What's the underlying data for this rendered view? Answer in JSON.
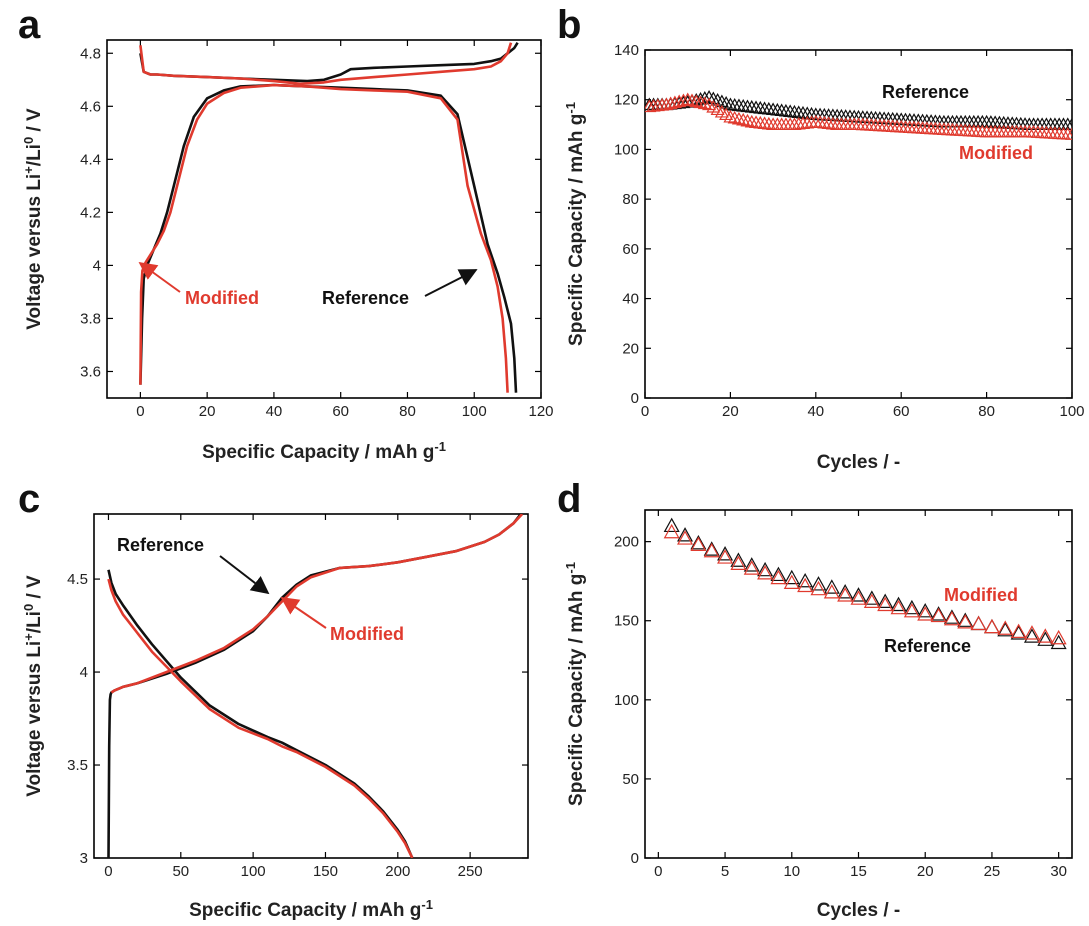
{
  "colors": {
    "reference": "#111111",
    "modified": "#e03a2e",
    "axis": "#000000"
  },
  "chart_data": [
    {
      "panel": "a",
      "type": "line",
      "xlabel": "Specific Capacity / mAh g",
      "xlabel_sup": "-1",
      "ylabel_parts": [
        "Voltage versus Li",
        "+",
        "/Li",
        "0",
        " / V"
      ],
      "xlim": [
        -10,
        120
      ],
      "ylim": [
        3.5,
        4.85
      ],
      "xticks": [
        "0",
        "20",
        "40",
        "60",
        "80",
        "100",
        "120"
      ],
      "xtick_values": [
        0,
        20,
        40,
        60,
        80,
        100,
        120
      ],
      "yticks": [
        "3.6",
        "3.8",
        "4",
        "4.2",
        "4.4",
        "4.6",
        "4.8"
      ],
      "ytick_values": [
        3.6,
        3.8,
        4.0,
        4.2,
        4.4,
        4.6,
        4.8
      ],
      "series": [
        {
          "name": "Reference",
          "color": "reference",
          "x": [
            0,
            0.5,
            1,
            2,
            4,
            6,
            8,
            10,
            13,
            16,
            20,
            25,
            30,
            40,
            50,
            60,
            70,
            80,
            90,
            95,
            100,
            104,
            107,
            109,
            111,
            112,
            112.5
          ],
          "y": [
            3.55,
            3.8,
            3.95,
            4.0,
            4.06,
            4.12,
            4.2,
            4.3,
            4.45,
            4.56,
            4.63,
            4.66,
            4.675,
            4.68,
            4.675,
            4.67,
            4.665,
            4.66,
            4.64,
            4.57,
            4.3,
            4.08,
            3.97,
            3.88,
            3.78,
            3.65,
            3.52
          ]
        },
        {
          "name": "Reference",
          "color": "reference",
          "x": [
            0,
            1,
            3,
            5,
            10,
            20,
            30,
            40,
            50,
            55,
            60,
            63,
            70,
            80,
            90,
            100,
            105,
            108,
            110,
            112,
            113
          ],
          "y": [
            4.8,
            4.73,
            4.72,
            4.72,
            4.715,
            4.71,
            4.705,
            4.7,
            4.695,
            4.7,
            4.72,
            4.74,
            4.745,
            4.75,
            4.755,
            4.76,
            4.77,
            4.78,
            4.8,
            4.82,
            4.84
          ]
        },
        {
          "name": "Modified",
          "color": "modified",
          "x": [
            0,
            0.2,
            0.6,
            1.5,
            3,
            5,
            7,
            9,
            11,
            14,
            17,
            20,
            25,
            30,
            40,
            50,
            60,
            70,
            80,
            90,
            95,
            98,
            102,
            105,
            107,
            108.5,
            109.5,
            110
          ],
          "y": [
            3.55,
            3.9,
            3.98,
            4.01,
            4.04,
            4.08,
            4.13,
            4.2,
            4.3,
            4.45,
            4.55,
            4.61,
            4.65,
            4.67,
            4.68,
            4.675,
            4.665,
            4.66,
            4.655,
            4.63,
            4.55,
            4.3,
            4.12,
            4.02,
            3.92,
            3.8,
            3.65,
            3.52
          ]
        },
        {
          "name": "Modified",
          "color": "modified",
          "x": [
            0,
            1,
            3,
            5,
            10,
            20,
            30,
            40,
            48,
            55,
            60,
            70,
            80,
            90,
            100,
            105,
            108,
            110,
            111
          ],
          "y": [
            4.83,
            4.73,
            4.72,
            4.72,
            4.715,
            4.71,
            4.705,
            4.695,
            4.685,
            4.69,
            4.7,
            4.71,
            4.72,
            4.73,
            4.74,
            4.75,
            4.77,
            4.8,
            4.84
          ]
        }
      ],
      "annotations": [
        {
          "text": "Modified",
          "color": "modified"
        },
        {
          "text": "Reference",
          "color": "reference"
        }
      ]
    },
    {
      "panel": "b",
      "type": "scatter",
      "xlabel": "Cycles / -",
      "ylabel": "Specific Capacity / mAh g",
      "ylabel_sup": "-1",
      "xlim": [
        0,
        100
      ],
      "ylim": [
        0,
        140
      ],
      "xticks": [
        "0",
        "20",
        "40",
        "60",
        "80",
        "100"
      ],
      "xtick_values": [
        0,
        20,
        40,
        60,
        80,
        100
      ],
      "yticks": [
        "0",
        "20",
        "40",
        "60",
        "80",
        "100",
        "120",
        "140"
      ],
      "ytick_values": [
        0,
        20,
        40,
        60,
        80,
        100,
        120,
        140
      ],
      "series": [
        {
          "name": "Reference",
          "color": "reference",
          "x": [
            0,
            5,
            10,
            15,
            20,
            30,
            40,
            50,
            60,
            70,
            80,
            90,
            100
          ],
          "y": [
            118,
            118,
            119,
            121,
            118,
            116,
            114,
            113,
            112,
            111,
            111,
            110,
            110
          ]
        },
        {
          "name": "Modified",
          "color": "modified",
          "x": [
            0,
            5,
            10,
            15,
            20,
            25,
            30,
            35,
            40,
            45,
            50,
            60,
            70,
            80,
            90,
            100
          ],
          "y": [
            117,
            118,
            120,
            118,
            113,
            111,
            110,
            110,
            111,
            110,
            110,
            109,
            108,
            107,
            107,
            106
          ]
        }
      ],
      "annotations": [
        {
          "text": "Reference",
          "color": "reference"
        },
        {
          "text": "Modified",
          "color": "modified"
        }
      ]
    },
    {
      "panel": "c",
      "type": "line",
      "xlabel": "Specific Capacity / mAh g",
      "xlabel_sup": "-1",
      "ylabel_parts": [
        "Voltage versus Li",
        "+",
        "/Li",
        "0",
        " / V"
      ],
      "xlim": [
        -10,
        290
      ],
      "ylim": [
        3.0,
        4.85
      ],
      "xticks": [
        "0",
        "50",
        "100",
        "150",
        "200",
        "250"
      ],
      "xtick_values": [
        0,
        50,
        100,
        150,
        200,
        250
      ],
      "yticks": [
        "3",
        "3.5",
        "4",
        "4.5"
      ],
      "ytick_values": [
        3.0,
        3.5,
        4.0,
        4.5
      ],
      "series": [
        {
          "name": "Reference",
          "color": "reference",
          "x": [
            0,
            2,
            5,
            10,
            20,
            30,
            50,
            70,
            90,
            110,
            120,
            130,
            150,
            170,
            180,
            190,
            200,
            205,
            210
          ],
          "y": [
            4.55,
            4.48,
            4.42,
            4.36,
            4.25,
            4.15,
            3.97,
            3.82,
            3.72,
            3.65,
            3.62,
            3.58,
            3.5,
            3.4,
            3.33,
            3.25,
            3.15,
            3.09,
            3.0
          ]
        },
        {
          "name": "Reference",
          "color": "reference",
          "x": [
            0,
            0.5,
            1,
            1.5,
            2,
            4,
            10,
            20,
            40,
            60,
            80,
            100,
            110,
            120,
            130,
            140,
            160,
            180,
            200,
            220,
            240,
            260,
            270,
            280,
            285
          ],
          "y": [
            3.0,
            3.6,
            3.85,
            3.88,
            3.89,
            3.9,
            3.92,
            3.94,
            3.99,
            4.05,
            4.12,
            4.22,
            4.3,
            4.4,
            4.47,
            4.52,
            4.56,
            4.57,
            4.59,
            4.62,
            4.65,
            4.7,
            4.74,
            4.8,
            4.85
          ]
        },
        {
          "name": "Modified",
          "color": "modified",
          "x": [
            0,
            2,
            5,
            10,
            20,
            30,
            50,
            70,
            90,
            110,
            120,
            130,
            150,
            170,
            180,
            190,
            200,
            205,
            210
          ],
          "y": [
            4.5,
            4.44,
            4.38,
            4.31,
            4.21,
            4.11,
            3.95,
            3.8,
            3.7,
            3.64,
            3.6,
            3.57,
            3.49,
            3.39,
            3.32,
            3.24,
            3.14,
            3.08,
            3.0
          ]
        },
        {
          "name": "Modified",
          "color": "modified",
          "x": [
            2,
            4,
            10,
            20,
            40,
            60,
            80,
            100,
            110,
            120,
            130,
            140,
            160,
            180,
            200,
            220,
            240,
            260,
            270,
            280,
            286
          ],
          "y": [
            3.89,
            3.9,
            3.92,
            3.94,
            4.0,
            4.06,
            4.13,
            4.23,
            4.3,
            4.38,
            4.46,
            4.51,
            4.56,
            4.57,
            4.59,
            4.62,
            4.65,
            4.7,
            4.74,
            4.8,
            4.85
          ]
        }
      ],
      "annotations": [
        {
          "text": "Reference",
          "color": "reference"
        },
        {
          "text": "Modified",
          "color": "modified"
        }
      ]
    },
    {
      "panel": "d",
      "type": "scatter",
      "xlabel": "Cycles / -",
      "ylabel": "Specific Capacity / mAh g",
      "ylabel_sup": "-1",
      "xlim": [
        -1,
        31
      ],
      "ylim": [
        0,
        220
      ],
      "xticks": [
        "0",
        "5",
        "10",
        "15",
        "20",
        "25",
        "30"
      ],
      "xtick_values": [
        0,
        5,
        10,
        15,
        20,
        25,
        30
      ],
      "yticks": [
        "0",
        "50",
        "100",
        "150",
        "200"
      ],
      "ytick_values": [
        0,
        50,
        100,
        150,
        200
      ],
      "series": [
        {
          "name": "Reference",
          "color": "reference",
          "x": [
            1,
            2,
            3,
            4,
            5,
            6,
            7,
            8,
            9,
            10,
            11,
            12,
            13,
            14,
            15,
            16,
            17,
            18,
            19,
            20,
            21,
            22,
            23,
            24,
            25,
            26,
            27,
            28,
            29,
            30
          ],
          "y": [
            210,
            204,
            199,
            195,
            192,
            188,
            185,
            182,
            179,
            177,
            175,
            173,
            171,
            168,
            166,
            164,
            162,
            160,
            158,
            156,
            154,
            152,
            150,
            148,
            146,
            144,
            142,
            140,
            138,
            136
          ]
        },
        {
          "name": "Modified",
          "color": "modified",
          "x": [
            1,
            2,
            3,
            4,
            5,
            6,
            7,
            8,
            9,
            10,
            11,
            12,
            13,
            14,
            15,
            16,
            17,
            18,
            19,
            20,
            21,
            22,
            23,
            24,
            25,
            26,
            27,
            28,
            29,
            30
          ],
          "y": [
            206,
            202,
            198,
            194,
            190,
            186,
            183,
            180,
            177,
            174,
            172,
            170,
            168,
            166,
            164,
            162,
            160,
            158,
            156,
            154,
            153,
            151,
            149,
            148,
            146,
            145,
            143,
            142,
            140,
            139
          ]
        }
      ],
      "annotations": [
        {
          "text": "Modified",
          "color": "modified"
        },
        {
          "text": "Reference",
          "color": "reference"
        }
      ]
    }
  ]
}
